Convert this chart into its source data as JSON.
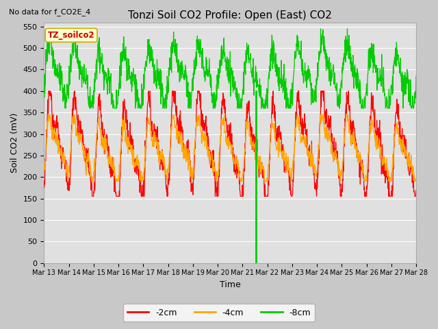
{
  "title": "Tonzi Soil CO2 Profile: Open (East) CO2",
  "no_data_text": "No data for f_CO2E_4",
  "ylabel": "Soil CO2 (mV)",
  "xlabel": "Time",
  "legend_label": "TZ_soilco2",
  "ylim": [
    0,
    560
  ],
  "yticks": [
    0,
    50,
    100,
    150,
    200,
    250,
    300,
    350,
    400,
    450,
    500,
    550
  ],
  "start_day": 13,
  "end_day": 28,
  "xtick_labels": [
    "Mar 13",
    "Mar 14",
    "Mar 15",
    "Mar 16",
    "Mar 17",
    "Mar 18",
    "Mar 19",
    "Mar 20",
    "Mar 21",
    "Mar 22",
    "Mar 23",
    "Mar 24",
    "Mar 25",
    "Mar 26",
    "Mar 27",
    "Mar 28"
  ],
  "line_colors": {
    "2cm": "#ff0000",
    "4cm": "#ffa500",
    "8cm": "#00cc00"
  },
  "series_labels": [
    "-2cm",
    "-4cm",
    "-8cm"
  ],
  "vertical_line_x": 21.55,
  "fig_bg_color": "#c8c8c8",
  "plot_bg_color": "#e0e0e0",
  "title_fontsize": 11,
  "axis_fontsize": 9,
  "tick_fontsize": 8,
  "legend_box_color": "#ffffcc",
  "legend_box_edge": "#ccaa00",
  "legend_text_color": "#cc0000"
}
